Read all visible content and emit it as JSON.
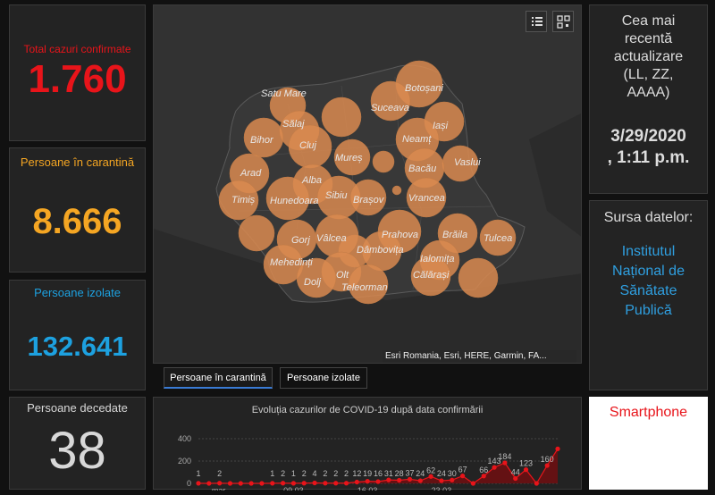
{
  "stats": {
    "total": {
      "label": "Total cazuri confirmate",
      "value": "1.760",
      "color": "#e8141a"
    },
    "quarantine": {
      "label": "Persoane în carantină",
      "value": "8.666",
      "color": "#f5a623"
    },
    "isolated": {
      "label": "Persoane izolate",
      "value": "132.641",
      "color": "#1da1e0"
    },
    "deceased": {
      "label": "Persoane decedate",
      "value": "38",
      "color": "#d8d8d8"
    }
  },
  "update": {
    "title_lines": [
      "Cea mai",
      "recentă",
      "actualizare",
      "(LL, ZZ,",
      "AAAA)"
    ],
    "date": "3/29/2020",
    "time": ", 1:11 p.m."
  },
  "source": {
    "title": "Sursa datelor:",
    "lines": [
      "Institutul",
      "Național de",
      "Sănătate",
      "Publică"
    ],
    "color": "#2f9fe0"
  },
  "smartphone": {
    "label": "Smartphone",
    "color": "#e8141a"
  },
  "map": {
    "attribution": "Esri Romania, Esri, HERE, Garmin, FA...",
    "toolbar": [
      "list-icon",
      "qr-grid-icon"
    ],
    "bubble_color": "#d98a50",
    "counties": [
      {
        "name": "Satu Mare"
      },
      {
        "name": "Botoșani"
      },
      {
        "name": "Suceava"
      },
      {
        "name": "Sălaj"
      },
      {
        "name": "Iași"
      },
      {
        "name": "Bihor"
      },
      {
        "name": "Cluj"
      },
      {
        "name": "Neamț"
      },
      {
        "name": "Mureș"
      },
      {
        "name": "Vaslui"
      },
      {
        "name": "Bacău"
      },
      {
        "name": "Arad"
      },
      {
        "name": "Alba"
      },
      {
        "name": "Sibiu"
      },
      {
        "name": "Timiș"
      },
      {
        "name": "Hunedoara"
      },
      {
        "name": "Brașov"
      },
      {
        "name": "Vrancea"
      },
      {
        "name": "Prahova"
      },
      {
        "name": "Brăila"
      },
      {
        "name": "Tulcea"
      },
      {
        "name": "Gorj"
      },
      {
        "name": "Vâlcea"
      },
      {
        "name": "Dâmbovița"
      },
      {
        "name": "Ialomița"
      },
      {
        "name": "Mehedinți"
      },
      {
        "name": "Olt"
      },
      {
        "name": "Călărași"
      },
      {
        "name": "Dolj"
      },
      {
        "name": "Teleorman"
      }
    ]
  },
  "tabs": [
    {
      "label": "Persoane în carantină",
      "active": true
    },
    {
      "label": "Persoane izolate",
      "active": false
    }
  ],
  "chart_data": {
    "type": "line",
    "title": "Evoluția cazurilor de COVID-19 după data confirmării",
    "y_ticks": [
      0,
      200,
      400
    ],
    "ylim": [
      0,
      400
    ],
    "x_tick_labels": [
      "mar.",
      "09.03",
      "16.03",
      "23.03"
    ],
    "labeled_points": [
      1,
      2,
      1,
      2,
      1,
      2,
      4,
      2,
      2,
      2,
      12,
      19,
      16,
      31,
      28,
      37,
      24,
      62,
      24,
      30,
      67,
      66,
      143,
      184,
      44,
      123,
      160
    ],
    "values": [
      1,
      0,
      2,
      0,
      0,
      0,
      0,
      1,
      2,
      1,
      2,
      4,
      2,
      2,
      2,
      12,
      19,
      16,
      31,
      28,
      37,
      24,
      62,
      24,
      30,
      67,
      0,
      66,
      143,
      184,
      44,
      123,
      0,
      160,
      309
    ],
    "line_color": "#e8141a",
    "fill_color": "#6b0f12"
  }
}
